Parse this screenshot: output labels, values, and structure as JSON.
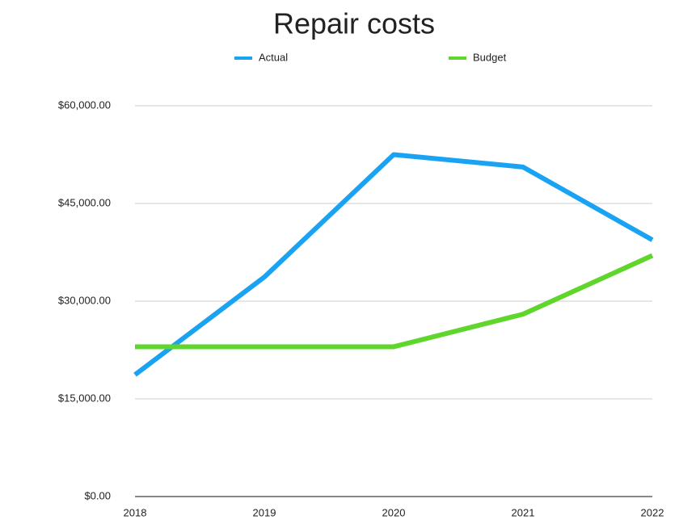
{
  "chart_data": {
    "type": "line",
    "title": "Repair costs",
    "x": [
      2018,
      2019,
      2020,
      2021,
      2022
    ],
    "xlim": [
      2018,
      2022
    ],
    "xticks": [
      2018,
      2019,
      2020,
      2021,
      2022
    ],
    "ylim": [
      0,
      60000
    ],
    "yticks": [
      {
        "value": 0,
        "label": "$0.00"
      },
      {
        "value": 15000,
        "label": "$15,000.00"
      },
      {
        "value": 30000,
        "label": "$30,000.00"
      },
      {
        "value": 45000,
        "label": "$45,000.00"
      },
      {
        "value": 60000,
        "label": "$60,000.00"
      }
    ],
    "grid": true,
    "legend": "top",
    "series": [
      {
        "name": "Actual",
        "color": "#1aa3f2",
        "values": [
          18700,
          33700,
          52500,
          50600,
          39400
        ]
      },
      {
        "name": "Budget",
        "color": "#5ed62b",
        "values": [
          23000,
          23000,
          23000,
          28000,
          37000
        ]
      }
    ]
  }
}
